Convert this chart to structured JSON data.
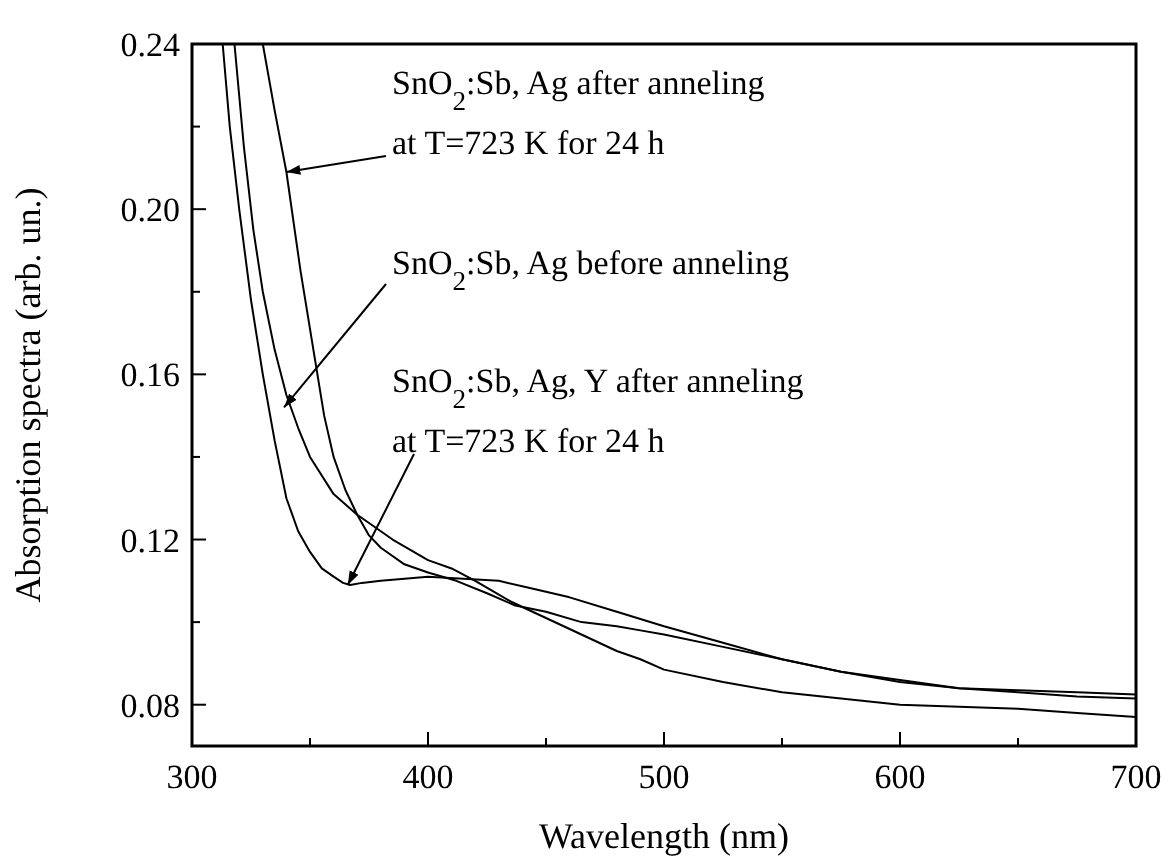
{
  "chart_data": {
    "type": "line",
    "xlabel": "Wavelength (nm)",
    "ylabel": "Absorption spectra  (arb. un.)",
    "xlim": [
      300,
      700
    ],
    "ylim": [
      0.07,
      0.24
    ],
    "xticks": [
      300,
      {
        "value": 350,
        "label": null
      },
      400,
      {
        "value": 450,
        "label": null
      },
      500,
      {
        "value": 550,
        "label": null
      },
      600,
      {
        "value": 650,
        "label": null
      },
      700
    ],
    "yticks": [
      0.08,
      {
        "value": 0.1,
        "label": null
      },
      0.12,
      {
        "value": 0.14,
        "label": null
      },
      0.16,
      {
        "value": 0.18,
        "label": null
      },
      {
        "value": 0.2,
        "label": "0.20"
      },
      {
        "value": 0.22,
        "label": null
      },
      0.24
    ],
    "grid": false,
    "series": [
      {
        "color": "#000000",
        "x": [
          330,
          335,
          340,
          346,
          352,
          356,
          360,
          365,
          370,
          375,
          380,
          390,
          400,
          412,
          425,
          437,
          450,
          465,
          480,
          490,
          500,
          525,
          550,
          575,
          600,
          625,
          650,
          675,
          700
        ],
        "values": [
          0.24,
          0.224,
          0.209,
          0.185,
          0.164,
          0.15,
          0.14,
          0.132,
          0.126,
          0.121,
          0.118,
          0.114,
          0.112,
          0.11,
          0.107,
          0.104,
          0.1025,
          0.1,
          0.099,
          0.098,
          0.097,
          0.094,
          0.091,
          0.088,
          0.086,
          0.084,
          0.0835,
          0.083,
          0.0825
        ]
      },
      {
        "color": "#000000",
        "x": [
          318,
          322,
          326,
          330,
          335,
          340,
          345,
          350,
          360,
          370,
          385,
          400,
          410,
          420,
          435,
          450,
          465,
          480,
          490,
          500,
          525,
          550,
          575,
          600,
          625,
          650,
          675,
          700
        ],
        "values": [
          0.24,
          0.215,
          0.195,
          0.18,
          0.166,
          0.155,
          0.147,
          0.14,
          0.131,
          0.126,
          0.12,
          0.115,
          0.113,
          0.11,
          0.105,
          0.101,
          0.097,
          0.093,
          0.091,
          0.0885,
          0.0855,
          0.083,
          0.0815,
          0.08,
          0.0795,
          0.079,
          0.078,
          0.077
        ]
      },
      {
        "color": "#000000",
        "x": [
          313,
          316,
          320,
          325,
          330,
          335,
          340,
          345,
          350,
          355,
          360,
          364,
          367,
          372,
          380,
          390,
          400,
          415,
          430,
          445,
          460,
          480,
          500,
          525,
          550,
          575,
          600,
          625,
          650,
          675,
          700
        ],
        "values": [
          0.24,
          0.22,
          0.2,
          0.178,
          0.16,
          0.144,
          0.13,
          0.122,
          0.117,
          0.113,
          0.111,
          0.1095,
          0.109,
          0.1095,
          0.11,
          0.1105,
          0.111,
          0.1105,
          0.11,
          0.108,
          0.106,
          0.1025,
          0.099,
          0.095,
          0.091,
          0.088,
          0.0855,
          0.084,
          0.083,
          0.082,
          0.0815
        ]
      }
    ],
    "annotations": [
      {
        "text": "SnO$_{2}$:Sb, Ag after anneling\nat T=723 K for 24 h",
        "x": 340,
        "y": 0.209
      },
      {
        "text": "SnO$_{2}$:Sb, Ag before anneling",
        "x": 339,
        "y": 0.152
      },
      {
        "text": "SnO$_{2}$:Sb, Ag, Y after anneling\nat T=723 K for 24 h",
        "x": 366,
        "y": 0.109
      }
    ]
  }
}
